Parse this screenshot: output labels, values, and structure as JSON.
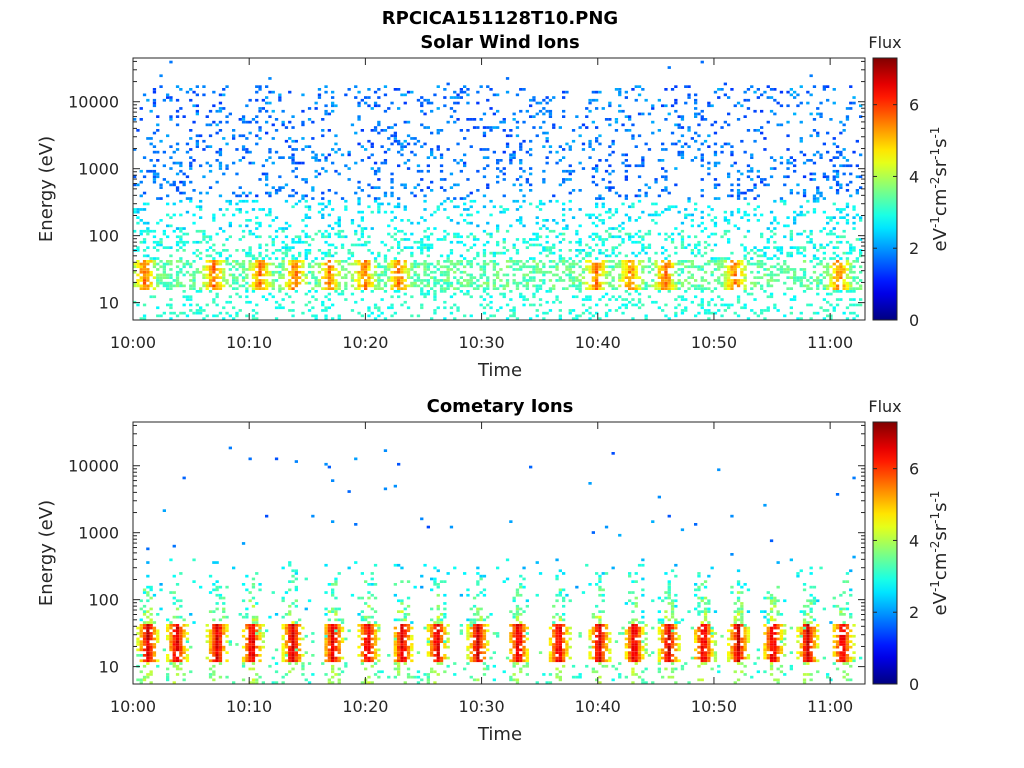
{
  "figure": {
    "title": "RPCICA151128T10.PNG"
  },
  "chart_data": [
    {
      "type": "heatmap",
      "title": "Solar Wind Ions",
      "xlabel": "Time",
      "ylabel": "Energy (eV)",
      "x_ticks": [
        "10:00",
        "10:10",
        "10:20",
        "10:30",
        "10:40",
        "10:50",
        "11:00"
      ],
      "x_range_minutes": [
        0,
        63
      ],
      "y_scale": "log",
      "y_ticks": [
        10,
        100,
        1000,
        10000
      ],
      "ylim": [
        5.5,
        45000
      ],
      "colorbar": {
        "label": "Flux",
        "unit_label": "eV-1cm-2sr-1s-1",
        "ticks": [
          0,
          2,
          4,
          6
        ],
        "range": [
          0,
          7.3
        ],
        "colormap": "jet"
      },
      "description_bands": [
        {
          "energy_range": [
            15,
            45
          ],
          "flux": [
            3.0,
            6.0
          ],
          "density": 0.6
        },
        {
          "energy_range": [
            45,
            350
          ],
          "flux": [
            2.0,
            3.2
          ],
          "density": 0.25
        },
        {
          "energy_range": [
            350,
            20000
          ],
          "flux": [
            1.3,
            2.2
          ],
          "density": 0.2
        },
        {
          "energy_range": [
            5.5,
            15
          ],
          "flux": [
            2.6,
            3.3
          ],
          "density": 0.25
        }
      ],
      "enhancement_times_minutes": [
        1,
        7,
        11,
        14,
        17,
        20,
        23,
        40,
        43,
        46,
        52,
        61
      ]
    },
    {
      "type": "heatmap",
      "title": "Cometary Ions",
      "xlabel": "Time",
      "ylabel": "Energy (eV)",
      "x_ticks": [
        "10:00",
        "10:10",
        "10:20",
        "10:30",
        "10:40",
        "10:50",
        "11:00"
      ],
      "x_range_minutes": [
        0,
        63
      ],
      "y_scale": "log",
      "y_ticks": [
        10,
        100,
        1000,
        10000
      ],
      "ylim": [
        5.5,
        45000
      ],
      "colorbar": {
        "label": "Flux",
        "unit_label": "eV-1cm-2sr-1s-1",
        "ticks": [
          0,
          2,
          4,
          6
        ],
        "range": [
          0,
          7.3
        ],
        "colormap": "jet"
      },
      "burst_times_minutes": [
        1,
        3.5,
        7,
        10,
        13.5,
        17,
        20,
        23,
        26,
        29.5,
        33,
        36.5,
        40,
        43,
        46,
        49,
        52,
        55,
        58,
        61
      ],
      "core_energy_range": [
        12,
        45
      ],
      "core_flux": [
        4.5,
        6.8
      ],
      "sparse_high_energy": true
    }
  ]
}
